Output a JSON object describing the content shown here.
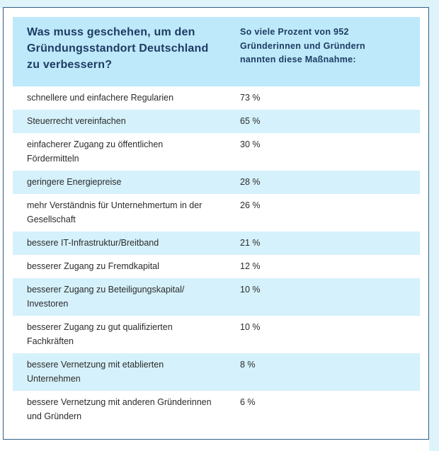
{
  "header": {
    "question_lines": [
      "Was muss geschehen, um den",
      "Gründungsstandort Deutschland",
      "zu verbessern?"
    ],
    "answer_lines": [
      "So viele Prozent von 952",
      "Gründerinnen und Gründern",
      "nannten diese Maßnahme:"
    ]
  },
  "rows": [
    {
      "lines": [
        "schnellere und einfachere Regularien"
      ],
      "value": "73 %"
    },
    {
      "lines": [
        "Steuerrecht vereinfachen"
      ],
      "value": "65 %"
    },
    {
      "lines": [
        "einfacherer Zugang zu öffentlichen",
        "Fördermitteln"
      ],
      "value": "30 %"
    },
    {
      "lines": [
        "geringere Energiepreise"
      ],
      "value": "28 %"
    },
    {
      "lines": [
        "mehr Verständnis für Unternehmertum in der",
        "Gesellschaft"
      ],
      "value": "26 %"
    },
    {
      "lines": [
        "bessere IT-Infrastruktur/Breitband"
      ],
      "value": "21 %"
    },
    {
      "lines": [
        "besserer Zugang zu Fremdkapital"
      ],
      "value": "12 %"
    },
    {
      "lines": [
        "besserer Zugang zu Beteiligungskapital/",
        "Investoren"
      ],
      "value": "10 %"
    },
    {
      "lines": [
        "besserer Zugang zu gut qualifizierten",
        "Fachkräften"
      ],
      "value": "10 %"
    },
    {
      "lines": [
        "bessere Vernetzung mit etablierten",
        "Unternehmen"
      ],
      "value": "8 %"
    },
    {
      "lines": [
        "bessere Vernetzung mit anderen Gründerinnen",
        "und Gründern"
      ],
      "value": "6 %"
    }
  ]
}
